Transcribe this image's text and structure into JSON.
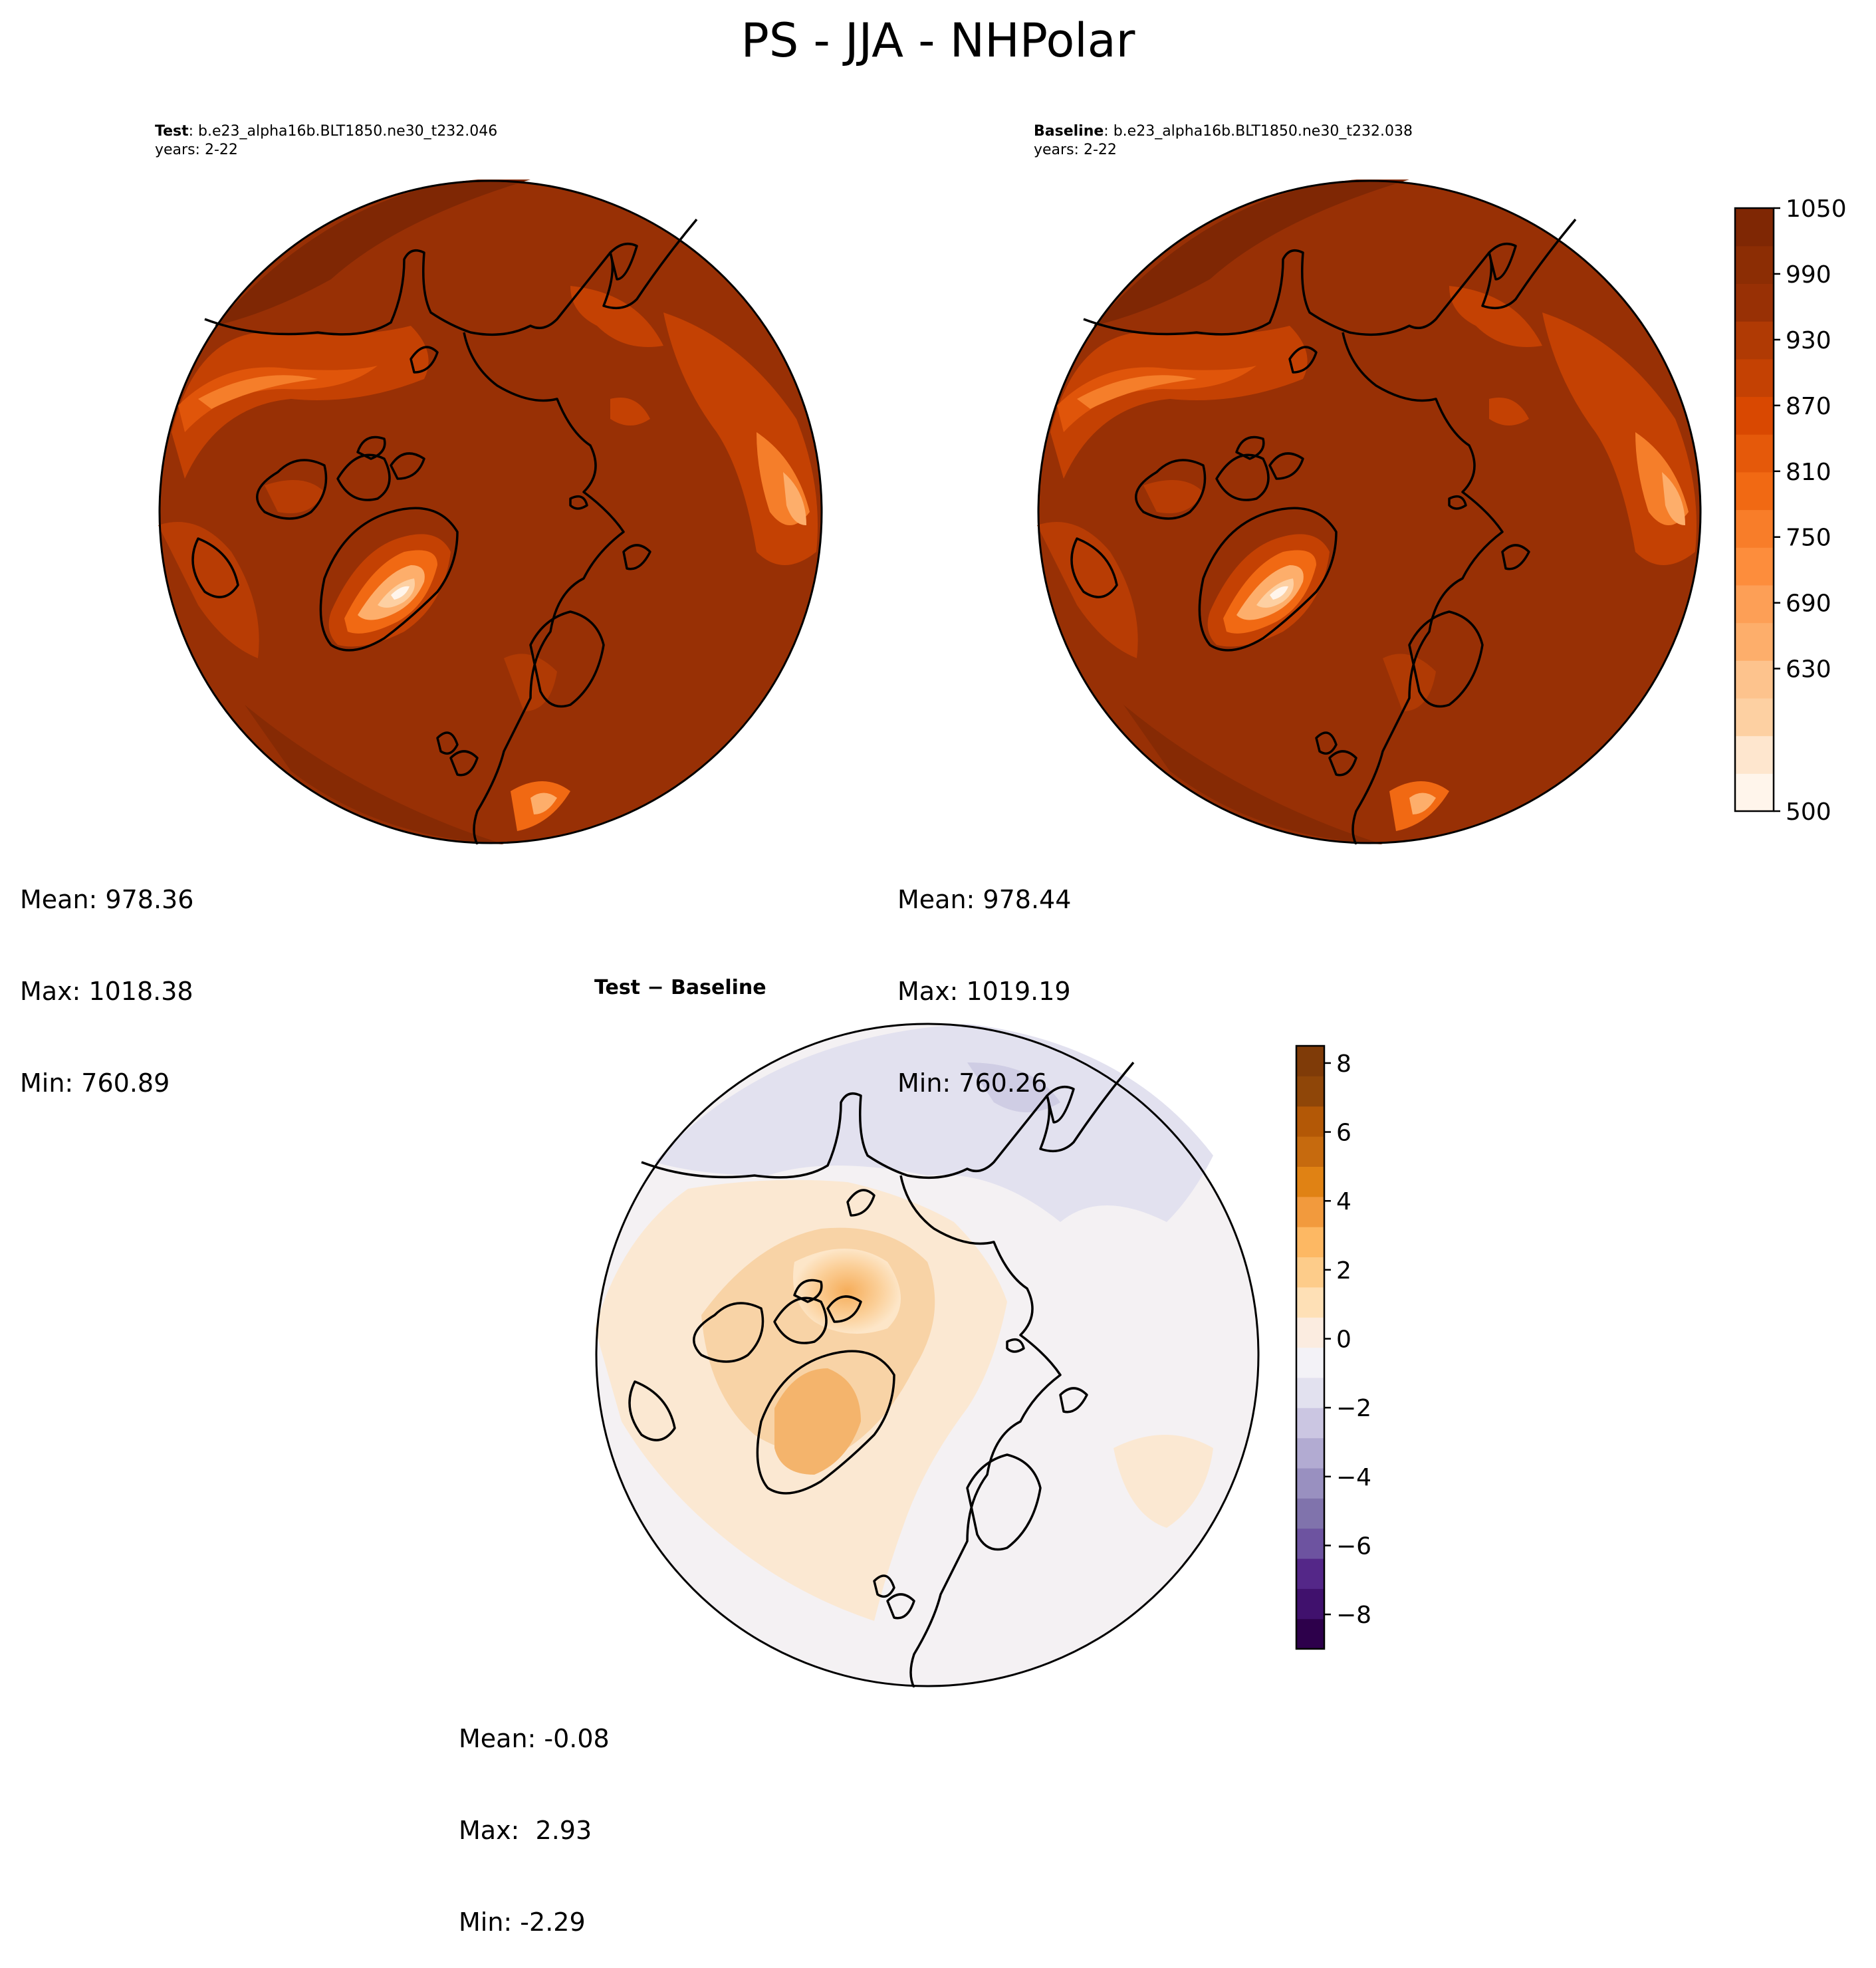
{
  "figure_title": "PS - JJA - NHPolar",
  "panels": {
    "test": {
      "label": "Test",
      "case": ": b.e23_alpha16b.BLT1850.ne30_t232.046",
      "years": "years: 2-22",
      "mean": "Mean: 978.36",
      "max": "Max: 1018.38",
      "min": "Min: 760.89"
    },
    "baseline": {
      "label": "Baseline",
      "case": ": b.e23_alpha16b.BLT1850.ne30_t232.038",
      "years": "years: 2-22",
      "mean": "Mean: 978.44",
      "max": "Max: 1019.19",
      "min": "Min: 760.26"
    },
    "diff": {
      "title": "Test − Baseline",
      "mean": "Mean: -0.08",
      "max": "Max:  2.93",
      "min": "Min: -2.29"
    }
  },
  "colors": {
    "abs_field": "#983005",
    "abs_dark": "#7f2704",
    "abs_mid": "#c44103",
    "abs_light": "#f16913",
    "abs_pale": "#fdae6b",
    "diff_pos": "#fdb863",
    "diff_neg": "#b2abd2",
    "coast": "#000000"
  },
  "chart_data": [
    {
      "type": "heatmap",
      "panel": "test",
      "field": "PS",
      "colorbar": {
        "min": 500,
        "max": 1050,
        "ticks": [
          500,
          630,
          690,
          750,
          810,
          870,
          930,
          990,
          1050
        ],
        "levels": [
          500,
          600,
          630,
          660,
          690,
          720,
          750,
          780,
          810,
          840,
          870,
          900,
          930,
          960,
          990,
          1020,
          1050
        ],
        "colormap": "Oranges"
      },
      "stats": {
        "mean": 978.36,
        "max": 1018.38,
        "min": 760.89
      }
    },
    {
      "type": "heatmap",
      "panel": "baseline",
      "field": "PS",
      "colorbar": {
        "min": 500,
        "max": 1050,
        "ticks": [
          500,
          630,
          690,
          750,
          810,
          870,
          930,
          990,
          1050
        ],
        "levels": [
          500,
          600,
          630,
          660,
          690,
          720,
          750,
          780,
          810,
          840,
          870,
          900,
          930,
          960,
          990,
          1020,
          1050
        ],
        "colormap": "Oranges"
      },
      "stats": {
        "mean": 978.44,
        "max": 1019.19,
        "min": 760.26
      }
    },
    {
      "type": "heatmap",
      "panel": "difference",
      "field": "PS",
      "colorbar": {
        "min": -9,
        "max": 8.5,
        "ticks": [
          -8,
          -6,
          -4,
          -2,
          0,
          2,
          4,
          6,
          8
        ],
        "colormap": "PuOr_r"
      },
      "stats": {
        "mean": -0.08,
        "max": 2.93,
        "min": -2.29
      }
    }
  ]
}
